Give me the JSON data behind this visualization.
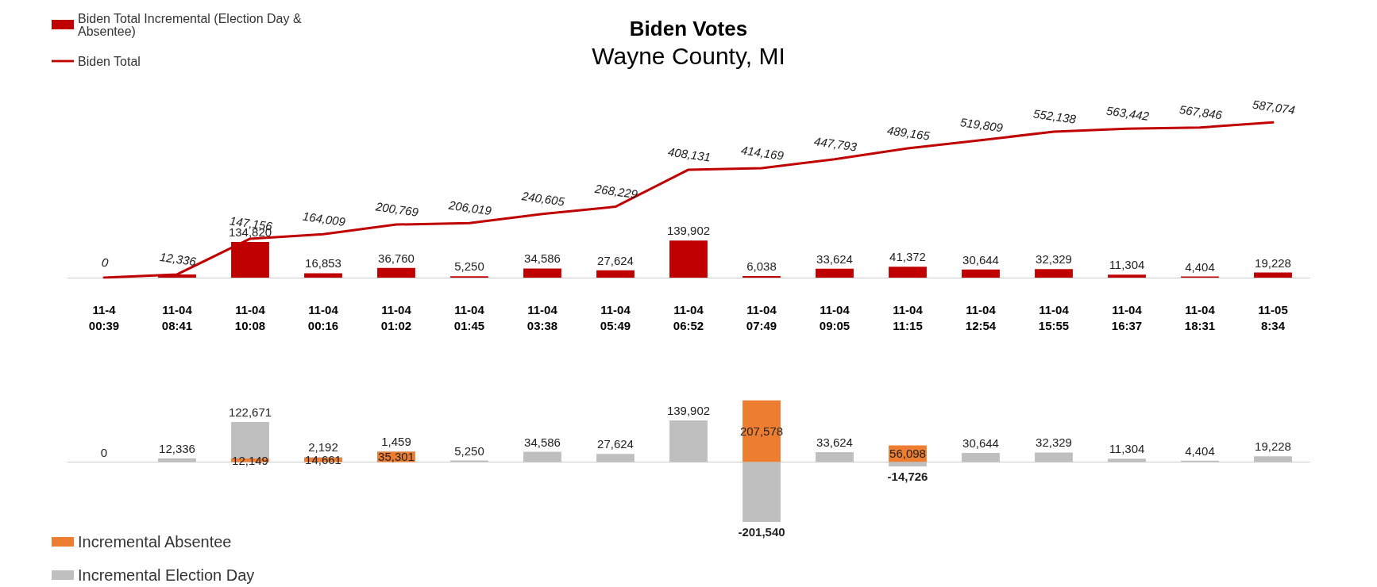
{
  "chart_data": [
    {
      "type": "bar",
      "title": "Biden Votes",
      "subtitle": "Wayne County, MI",
      "categories": [
        "11-4\n00:39",
        "11-04\n08:41",
        "11-04\n10:08",
        "11-04\n00:16",
        "11-04\n01:02",
        "11-04\n01:45",
        "11-04\n03:38",
        "11-04\n05:49",
        "11-04\n06:52",
        "11-04\n07:49",
        "11-04\n09:05",
        "11-04\n11:15",
        "11-04\n12:54",
        "11-04\n15:55",
        "11-04\n16:37",
        "11-04\n18:31",
        "11-05\n8:34"
      ],
      "series": [
        {
          "name": "Biden Total Incremental (Election Day & Absentee)",
          "color": "#c00000",
          "type": "bar",
          "values": [
            null,
            12336,
            134820,
            16853,
            36760,
            5250,
            34586,
            27624,
            139902,
            6038,
            33624,
            41372,
            30644,
            32329,
            11304,
            4404,
            19228
          ],
          "value_labels": [
            null,
            null,
            "134,820",
            "16,853",
            "36,760",
            "5,250",
            "34,586",
            "27,624",
            "139,902",
            "6,038",
            "33,624",
            "41,372",
            "30,644",
            "32,329",
            "11,304",
            "4,404",
            "19,228"
          ]
        },
        {
          "name": "Biden Total",
          "color": "#c00000",
          "type": "line",
          "values": [
            0,
            12336,
            147156,
            164009,
            200769,
            206019,
            240605,
            268229,
            408131,
            414169,
            447793,
            489165,
            519809,
            552138,
            563442,
            567846,
            587074
          ],
          "value_labels": [
            "0",
            "12,336",
            "147,156",
            "164,009",
            "200,769",
            "206,019",
            "240,605",
            "268,229",
            "408,131",
            "414,169",
            "447,793",
            "489,165",
            "519,809",
            "552,138",
            "563,442",
            "567,846",
            "587,074"
          ]
        }
      ],
      "marker": "none",
      "legend": "top left"
    },
    {
      "type": "bar",
      "stacked": true,
      "categories": [
        null,
        null,
        null,
        null,
        null,
        null,
        null,
        null,
        null,
        null,
        null,
        null,
        null,
        null,
        null,
        null,
        null
      ],
      "series": [
        {
          "name": "Incremental Absentee",
          "color": "#ed7d31",
          "values": [
            null,
            null,
            12149,
            14661,
            35301,
            null,
            null,
            null,
            null,
            207578,
            null,
            56098,
            null,
            null,
            null,
            null,
            null
          ],
          "value_labels": [
            null,
            null,
            "12,149",
            "14,661",
            "35,301",
            null,
            null,
            null,
            null,
            "207,578",
            null,
            "56,098",
            null,
            null,
            null,
            null,
            null
          ]
        },
        {
          "name": "Incremental Election Day",
          "color": "#bfbfbf",
          "values": [
            0,
            12336,
            122671,
            2192,
            1459,
            5250,
            34586,
            27624,
            139902,
            -201540,
            33624,
            -14726,
            30644,
            32329,
            11304,
            4404,
            19228
          ],
          "value_labels": [
            "0",
            "12,336",
            "122,671",
            "2,192",
            "1,459",
            "5,250",
            "34,586",
            "27,624",
            "139,902",
            "-201,540",
            "33,624",
            "-14,726",
            "30,644",
            "32,329",
            "11,304",
            "4,404",
            "19,228"
          ]
        }
      ],
      "legend": "bottom left"
    }
  ]
}
